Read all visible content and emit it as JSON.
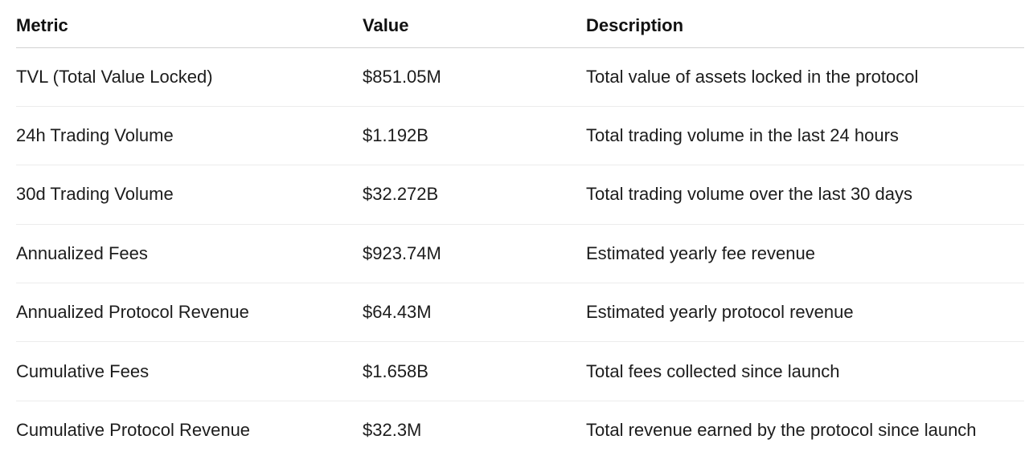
{
  "table": {
    "headers": [
      "Metric",
      "Value",
      "Description"
    ],
    "rows": [
      {
        "metric": "TVL (Total Value Locked)",
        "value": "$851.05M",
        "description": "Total value of assets locked in the protocol"
      },
      {
        "metric": "24h Trading Volume",
        "value": "$1.192B",
        "description": "Total trading volume in the last 24 hours"
      },
      {
        "metric": "30d Trading Volume",
        "value": "$32.272B",
        "description": "Total trading volume over the last 30 days"
      },
      {
        "metric": "Annualized Fees",
        "value": "$923.74M",
        "description": "Estimated yearly fee revenue"
      },
      {
        "metric": "Annualized Protocol Revenue",
        "value": "$64.43M",
        "description": "Estimated yearly protocol revenue"
      },
      {
        "metric": "Cumulative Fees",
        "value": "$1.658B",
        "description": "Total fees collected since launch"
      },
      {
        "metric": "Cumulative Protocol Revenue",
        "value": "$32.3M",
        "description": "Total revenue earned by the protocol since launch"
      }
    ]
  }
}
